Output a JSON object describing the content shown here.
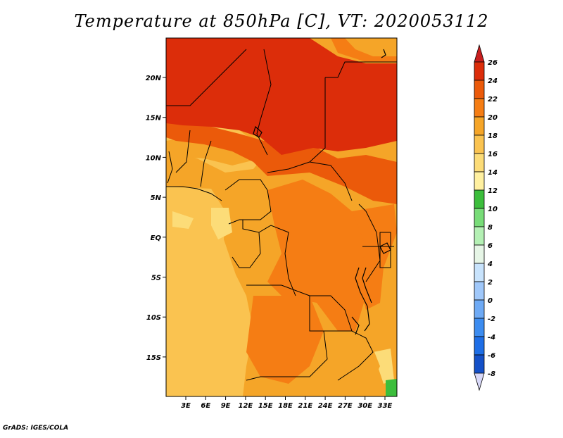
{
  "title": "Temperature at 850hPa [C], VT: 2020053112",
  "credit": "GrADS: IGES/COLA",
  "map": {
    "lat_labels": [
      "20N",
      "15N",
      "10N",
      "5N",
      "EQ",
      "5S",
      "10S",
      "15S"
    ],
    "lon_labels": [
      "3E",
      "6E",
      "9E",
      "12E",
      "15E",
      "18E",
      "21E",
      "24E",
      "27E",
      "30E",
      "33E"
    ]
  },
  "colorbar": {
    "labels": [
      "26",
      "24",
      "22",
      "20",
      "18",
      "16",
      "14",
      "12",
      "10",
      "8",
      "6",
      "4",
      "2",
      "0",
      "-2",
      "-4",
      "-6",
      "-8"
    ],
    "colors": [
      "#d8d8f8",
      "#0a0a6e",
      "#0c2fa0",
      "#1450c8",
      "#1e6ee6",
      "#3c8cf0",
      "#6eaaf5",
      "#a0c8fa",
      "#c8e3fc",
      "#e6f5e6",
      "#b4f0b4",
      "#78dc78",
      "#3cbe3c",
      "#fff0a0",
      "#fcdc78",
      "#fac350",
      "#f5a528",
      "#f57d14",
      "#eb5a0a",
      "#dc2d0a",
      "#c81e1e"
    ]
  }
}
